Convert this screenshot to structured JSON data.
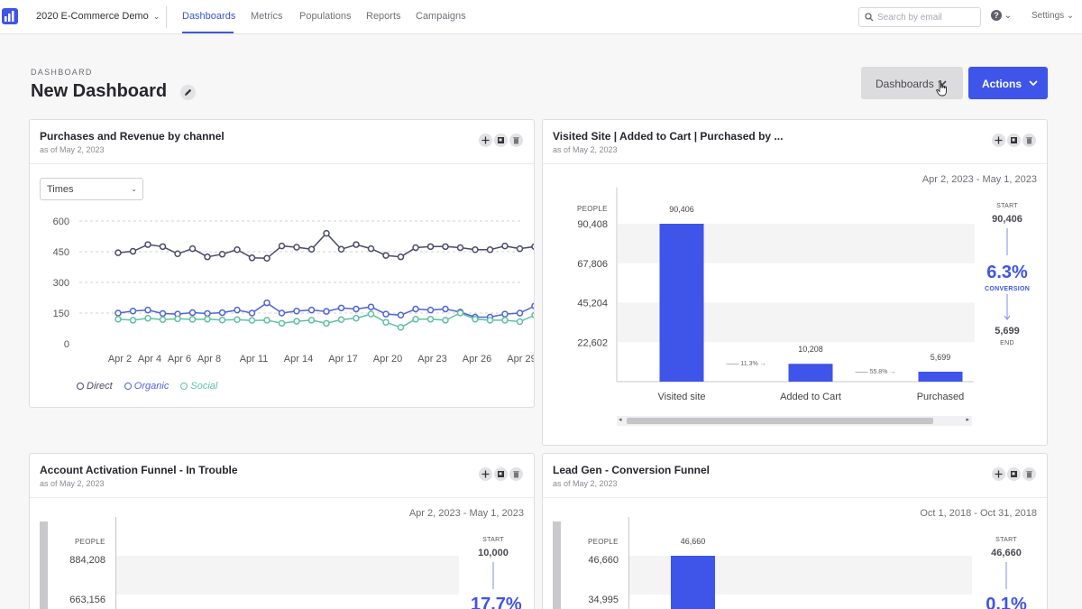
{
  "nav": {
    "project": "2020 E-Commerce Demo",
    "tabs": [
      {
        "label": "Dashboards",
        "active": true
      },
      {
        "label": "Metrics",
        "active": false
      },
      {
        "label": "Populations",
        "active": false
      },
      {
        "label": "Reports",
        "active": false
      },
      {
        "label": "Campaigns",
        "active": false
      }
    ],
    "search_placeholder": "Search by email",
    "help_icon": "question-circle-icon",
    "settings_label": "Settings",
    "accent_color": "#4356d6"
  },
  "header": {
    "eyebrow": "DASHBOARD",
    "title": "New Dashboard",
    "dashboards_button": "Dashboards",
    "actions_button": "Actions",
    "actions_color": "#3f54e8"
  },
  "cards": [
    {
      "title": "Purchases and Revenue by channel",
      "subtitle": "as of May 2, 2023",
      "select_value": "Times"
    },
    {
      "title": "Visited Site | Added to Cart | Purchased by ...",
      "subtitle": "as of May 2, 2023",
      "date_range": "Apr 2, 2023 - May 1, 2023",
      "people_label": "PEOPLE",
      "start_label": "START",
      "start_value": "90,406",
      "conversion_value": "6.3%",
      "conversion_label": "CONVERSION",
      "end_value": "5,699",
      "end_label": "END"
    },
    {
      "title": "Account Activation Funnel - In Trouble",
      "subtitle": "as of May 2, 2023",
      "date_range": "Apr 2, 2023 - May 1, 2023",
      "people_label": "PEOPLE",
      "ticks": [
        "884,208",
        "663,156"
      ],
      "start_label": "START",
      "start_value": "10,000",
      "conversion_partial": "17.7%"
    },
    {
      "title": "Lead Gen - Conversion Funnel",
      "subtitle": "as of May 2, 2023",
      "date_range": "Oct 1, 2018 - Oct 31, 2018",
      "people_label": "PEOPLE",
      "ticks": [
        "46,660",
        "34,995"
      ],
      "bar_label": "46,660",
      "start_label": "START",
      "start_value": "46,660",
      "conversion_partial": "0.1%"
    }
  ],
  "chart_data": [
    {
      "type": "line",
      "x": [
        "Apr 2",
        "Apr 3",
        "Apr 4",
        "Apr 5",
        "Apr 6",
        "Apr 7",
        "Apr 8",
        "Apr 9",
        "Apr 10",
        "Apr 11",
        "Apr 12",
        "Apr 13",
        "Apr 14",
        "Apr 15",
        "Apr 16",
        "Apr 17",
        "Apr 18",
        "Apr 19",
        "Apr 20",
        "Apr 21",
        "Apr 22",
        "Apr 23",
        "Apr 24",
        "Apr 25",
        "Apr 26",
        "Apr 27",
        "Apr 28",
        "Apr 29",
        "Apr 30"
      ],
      "tick_labels": [
        "Apr 2",
        "Apr 4",
        "Apr 6",
        "Apr 8",
        "Apr 11",
        "Apr 14",
        "Apr 17",
        "Apr 20",
        "Apr 23",
        "Apr 26",
        "Apr 29"
      ],
      "y_ticks": [
        0,
        150,
        300,
        450,
        600
      ],
      "ylim": [
        0,
        600
      ],
      "grid": true,
      "legend_placement": "bottom-left",
      "series": [
        {
          "name": "Direct",
          "color": "#4a4a6a",
          "values": [
            445,
            452,
            485,
            475,
            440,
            465,
            425,
            438,
            460,
            420,
            418,
            478,
            472,
            462,
            540,
            462,
            485,
            465,
            432,
            425,
            470,
            475,
            475,
            470,
            460,
            460,
            478,
            465,
            475
          ]
        },
        {
          "name": "Organic",
          "color": "#4f63d8",
          "values": [
            150,
            160,
            165,
            148,
            145,
            152,
            148,
            152,
            165,
            150,
            200,
            150,
            160,
            165,
            158,
            175,
            170,
            180,
            145,
            140,
            170,
            165,
            170,
            155,
            130,
            130,
            145,
            150,
            185
          ]
        },
        {
          "name": "Social",
          "color": "#5fc29e",
          "values": [
            120,
            115,
            125,
            118,
            122,
            119,
            120,
            116,
            118,
            114,
            115,
            100,
            110,
            115,
            100,
            118,
            125,
            145,
            105,
            80,
            120,
            120,
            115,
            150,
            120,
            115,
            115,
            108,
            140
          ]
        }
      ]
    },
    {
      "type": "bar",
      "categories": [
        "Visited site",
        "Added to Cart",
        "Purchased"
      ],
      "values": [
        90406,
        10208,
        5699
      ],
      "data_labels": [
        "90,406",
        "10,208",
        "5,699"
      ],
      "step_rates": [
        "11.3%",
        "55.8%"
      ],
      "y_ticks": [
        "90,408",
        "67,806",
        "45,204",
        "22,602"
      ],
      "ylim": [
        0,
        90408
      ],
      "bar_color": "#3f54e8"
    }
  ]
}
